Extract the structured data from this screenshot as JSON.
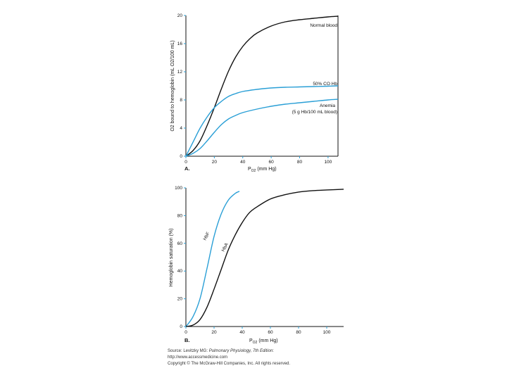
{
  "chart_data": [
    {
      "panel": "A.",
      "type": "line",
      "title": "",
      "xlabel": "P O2 (mm Hg)",
      "xlabel_main": "P",
      "xlabel_sub": "O2",
      "xlabel_rest": "(mm Hg)",
      "ylabel": "O2 bound to hemoglobin (mL O2/100 mL)",
      "xlim": [
        0,
        107
      ],
      "ylim": [
        0,
        20
      ],
      "xticks": [
        "0",
        "20",
        "40",
        "60",
        "80",
        "100"
      ],
      "yticks": [
        "0",
        "4",
        "8",
        "12",
        "16",
        "20"
      ],
      "series": [
        {
          "name": "Normal blood",
          "color": "#111111",
          "x": [
            0,
            5,
            10,
            15,
            20,
            25,
            30,
            35,
            40,
            45,
            50,
            60,
            70,
            80,
            90,
            100,
            107
          ],
          "values": [
            0,
            0.8,
            2.2,
            4.4,
            6.9,
            9.6,
            12.1,
            14.1,
            15.6,
            16.7,
            17.5,
            18.5,
            19.1,
            19.4,
            19.6,
            19.8,
            19.9
          ]
        },
        {
          "name": "50% CO Hb",
          "color": "#2a9fd6",
          "x": [
            0,
            5,
            10,
            15,
            20,
            25,
            30,
            35,
            40,
            50,
            60,
            70,
            80,
            90,
            100,
            107
          ],
          "values": [
            0,
            2.0,
            4.0,
            5.6,
            6.9,
            7.8,
            8.5,
            8.9,
            9.2,
            9.5,
            9.7,
            9.8,
            9.85,
            9.9,
            9.95,
            10.0
          ]
        },
        {
          "name": "Anemia\n(5 g Hb/100 mL blood)",
          "color": "#2a9fd6",
          "x": [
            0,
            5,
            10,
            15,
            20,
            25,
            30,
            35,
            40,
            50,
            60,
            70,
            80,
            90,
            100,
            107
          ],
          "values": [
            0,
            0.4,
            1.1,
            2.2,
            3.4,
            4.5,
            5.3,
            5.8,
            6.2,
            6.7,
            7.1,
            7.4,
            7.6,
            7.8,
            8.0,
            8.1
          ]
        }
      ],
      "labels": {
        "normal": "Normal blood",
        "co": "50% CO Hb",
        "anemia_1": "Anemia",
        "anemia_2": "(5 g Hb/100 mL blood)"
      }
    },
    {
      "panel": "B.",
      "type": "line",
      "title": "",
      "xlabel": "P O2 (mm Hg)",
      "xlabel_main": "P",
      "xlabel_sub": "O2",
      "xlabel_rest": "(mm Hg)",
      "ylabel": "Hemoglobin saturation (%)",
      "xlim": [
        0,
        112
      ],
      "ylim": [
        0,
        100
      ],
      "xticks": [
        "0",
        "20",
        "40",
        "60",
        "80",
        "100"
      ],
      "yticks": [
        "0",
        "20",
        "40",
        "60",
        "80",
        "100"
      ],
      "series": [
        {
          "name": "HbF",
          "color": "#2a9fd6",
          "x": [
            0,
            5,
            10,
            15,
            20,
            25,
            30,
            35,
            38
          ],
          "values": [
            0,
            7,
            20,
            42,
            65,
            81,
            91,
            96,
            97.5
          ]
        },
        {
          "name": "HbA",
          "color": "#111111",
          "x": [
            0,
            5,
            10,
            15,
            20,
            25,
            30,
            35,
            40,
            45,
            50,
            60,
            70,
            80,
            90,
            100,
            112
          ],
          "values": [
            0,
            1,
            5,
            14,
            27,
            41,
            55,
            66,
            75,
            82,
            86,
            92,
            95,
            97,
            98,
            98.5,
            99
          ]
        }
      ],
      "labels": {
        "hbf": "HbF",
        "hba": "HbA"
      }
    }
  ],
  "caption": {
    "line1_prefix": "Source: Levitzky MG: ",
    "line1_title": "Pulmonary Physiology, 7th Edition",
    "line1_suffix": ":",
    "line2": "http://www.accessmedicine.com",
    "line3": "Copyright © The McGraw-Hill Companies, Inc. All rights reserved."
  }
}
